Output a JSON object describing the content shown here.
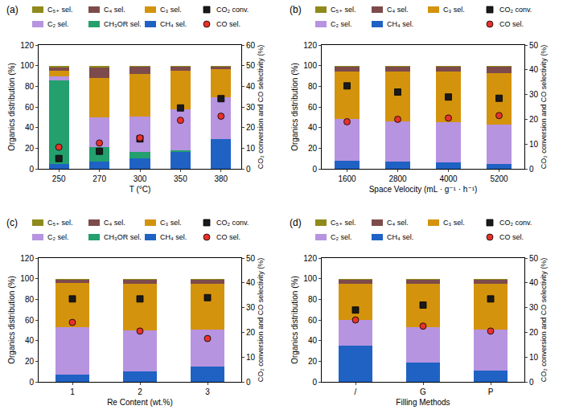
{
  "chart_data": [
    {
      "type": "bar",
      "title": "(a)",
      "xlabel": "T (°C)",
      "ylabel": "Organics distribution (%)",
      "y2label": "CO₂ conversion and CO selectivity (%)",
      "categories": [
        "250",
        "270",
        "300",
        "350",
        "380"
      ],
      "stacked": true,
      "legend": "top",
      "grid": false,
      "ylim": [
        0,
        120
      ],
      "yticks": [
        0,
        20,
        40,
        60,
        80,
        100,
        120
      ],
      "y2lim": [
        0,
        60
      ],
      "y2ticks": [
        0,
        10,
        20,
        30,
        40,
        50,
        60
      ],
      "series": [
        {
          "name": "CH₄ sel.",
          "color": "#1f62c4",
          "values": [
            5,
            7,
            10,
            16,
            29
          ]
        },
        {
          "name": "CH₃OR sel.",
          "color": "#23a06e",
          "values": [
            81,
            14,
            6,
            2,
            0
          ]
        },
        {
          "name": "C₂ sel.",
          "color": "#b794e0",
          "values": [
            4,
            29,
            35,
            40,
            40
          ]
        },
        {
          "name": "C₃ sel.",
          "color": "#d4930d",
          "values": [
            5,
            38,
            41,
            37,
            28
          ]
        },
        {
          "name": "C₄ sel.",
          "color": "#7d4b4b",
          "values": [
            3,
            10,
            7,
            4,
            2
          ]
        },
        {
          "name": "C₅₊ sel.",
          "color": "#8f8a1c",
          "values": [
            2,
            2,
            1,
            1,
            1
          ]
        },
        {
          "name": "CO₂ conv.",
          "color": "#1a1a1a",
          "type": "scatter",
          "marker": "square",
          "axis": "y2",
          "values": [
            5,
            8.5,
            14.5,
            29.5,
            34
          ]
        },
        {
          "name": "CO sel.",
          "color": "#e8312a",
          "type": "scatter",
          "marker": "circle",
          "axis": "y2",
          "values": [
            10.5,
            12.5,
            15,
            23.5,
            25.5
          ]
        }
      ]
    },
    {
      "type": "bar",
      "title": "(b)",
      "xlabel": "Space Velocity (mL · g⁻¹ · h⁻¹)",
      "ylabel": "Organics distribution (%)",
      "y2label": "CO₂ conversion and CO selectivity (%)",
      "categories": [
        "1600",
        "2800",
        "4000",
        "5200"
      ],
      "stacked": true,
      "legend": "top",
      "grid": false,
      "ylim": [
        0,
        120
      ],
      "yticks": [
        0,
        20,
        40,
        60,
        80,
        100,
        120
      ],
      "y2lim": [
        0,
        50
      ],
      "y2ticks": [
        0,
        10,
        20,
        30,
        40,
        50
      ],
      "series": [
        {
          "name": "CH₄ sel.",
          "color": "#1f62c4",
          "values": [
            8,
            7,
            6,
            5
          ]
        },
        {
          "name": "C₂ sel.",
          "color": "#b794e0",
          "values": [
            40,
            39,
            39,
            38
          ]
        },
        {
          "name": "C₃ sel.",
          "color": "#d4930d",
          "values": [
            46,
            48,
            49,
            50
          ]
        },
        {
          "name": "C₄ sel.",
          "color": "#7d4b4b",
          "values": [
            5,
            5,
            5,
            6
          ]
        },
        {
          "name": "C₅₊ sel.",
          "color": "#8f8a1c",
          "values": [
            1,
            1,
            1,
            1
          ]
        },
        {
          "name": "CO₂ conv.",
          "color": "#1a1a1a",
          "type": "scatter",
          "marker": "square",
          "axis": "y2",
          "values": [
            33.5,
            31,
            29,
            28.5
          ]
        },
        {
          "name": "CO sel.",
          "color": "#e8312a",
          "type": "scatter",
          "marker": "circle",
          "axis": "y2",
          "values": [
            19,
            20,
            20.5,
            21.5
          ]
        }
      ]
    },
    {
      "type": "bar",
      "title": "(c)",
      "xlabel": "Re Content (wt.%)",
      "ylabel": "Organics distribution (%)",
      "y2label": "CO₂ conversion and CO selectivity (%)",
      "categories": [
        "1",
        "2",
        "3"
      ],
      "stacked": true,
      "legend": "top",
      "grid": false,
      "ylim": [
        0,
        120
      ],
      "yticks": [
        0,
        20,
        40,
        60,
        80,
        100,
        120
      ],
      "y2lim": [
        0,
        50
      ],
      "y2ticks": [
        0,
        10,
        20,
        30,
        40,
        50
      ],
      "series": [
        {
          "name": "CH₄ sel.",
          "color": "#1f62c4",
          "values": [
            7,
            10,
            15
          ]
        },
        {
          "name": "CH₃OR sel.",
          "color": "#23a06e",
          "values": [
            0,
            0,
            0
          ]
        },
        {
          "name": "C₂ sel.",
          "color": "#b794e0",
          "values": [
            46,
            40,
            36
          ]
        },
        {
          "name": "C₃ sel.",
          "color": "#d4930d",
          "values": [
            43,
            45,
            44
          ]
        },
        {
          "name": "C₄ sel.",
          "color": "#7d4b4b",
          "values": [
            3,
            4,
            4
          ]
        },
        {
          "name": "C₅₊ sel.",
          "color": "#8f8a1c",
          "values": [
            1,
            1,
            1
          ]
        },
        {
          "name": "CO₂ conv.",
          "color": "#1a1a1a",
          "type": "scatter",
          "marker": "square",
          "axis": "y2",
          "values": [
            33.5,
            33.5,
            34
          ]
        },
        {
          "name": "CO sel.",
          "color": "#e8312a",
          "type": "scatter",
          "marker": "circle",
          "axis": "y2",
          "values": [
            24,
            20.5,
            17.5
          ]
        }
      ]
    },
    {
      "type": "bar",
      "title": "(d)",
      "xlabel": "Filling Methods",
      "ylabel": "Organics distribution (%)",
      "y2label": "CO₂ conversion and CO selectivity (%)",
      "categories": [
        "/",
        "G",
        "P"
      ],
      "stacked": true,
      "legend": "top",
      "grid": false,
      "ylim": [
        0,
        120
      ],
      "yticks": [
        0,
        20,
        40,
        60,
        80,
        100,
        120
      ],
      "y2lim": [
        0,
        50
      ],
      "y2ticks": [
        0,
        10,
        20,
        30,
        40,
        50
      ],
      "series": [
        {
          "name": "CH₄ sel.",
          "color": "#1f62c4",
          "values": [
            35,
            19,
            11
          ]
        },
        {
          "name": "C₂ sel.",
          "color": "#b794e0",
          "values": [
            25,
            34,
            40
          ]
        },
        {
          "name": "C₃ sel.",
          "color": "#d4930d",
          "values": [
            35,
            42,
            44
          ]
        },
        {
          "name": "C₄ sel.",
          "color": "#7d4b4b",
          "values": [
            4,
            4,
            4
          ]
        },
        {
          "name": "C₅₊ sel.",
          "color": "#8f8a1c",
          "values": [
            1,
            1,
            1
          ]
        },
        {
          "name": "CO₂ conv.",
          "color": "#1a1a1a",
          "type": "scatter",
          "marker": "square",
          "axis": "y2",
          "values": [
            29,
            31,
            33.5
          ]
        },
        {
          "name": "CO sel.",
          "color": "#e8312a",
          "type": "scatter",
          "marker": "circle",
          "axis": "y2",
          "values": [
            25,
            22.5,
            20.5
          ]
        }
      ]
    }
  ]
}
